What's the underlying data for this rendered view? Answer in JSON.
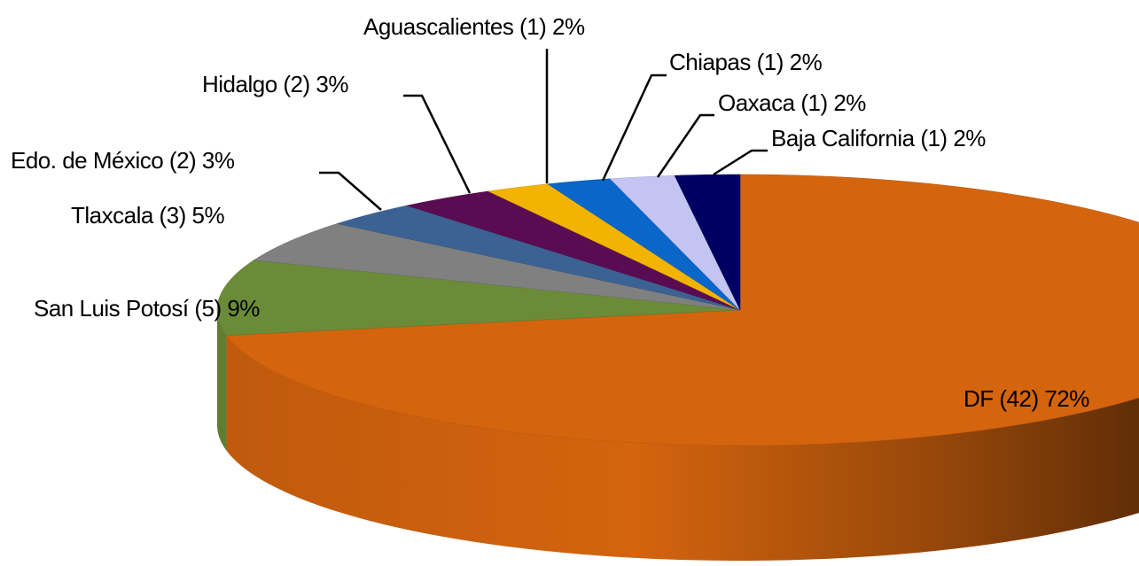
{
  "chart_data": {
    "type": "pie",
    "values": [
      72,
      9,
      5,
      3,
      3,
      2,
      2,
      2,
      2
    ],
    "value_labels": [
      "DF (42) 72%",
      "San Luis Potosí (5) 9%",
      "Tlaxcala (3) 5%",
      "Edo. de México (2) 3%",
      "Hidalgo (2) 3%",
      "Aguascalientes (1) 2%",
      "Chiapas (1) 2%",
      "Oaxaca (1)  2%",
      "Baja California (1) 2%"
    ],
    "colors": [
      "#d4640e",
      "#6b8b38",
      "#808080",
      "#3c6294",
      "#5a0c52",
      "#f2b400",
      "#0a66c8",
      "#c4c4f2",
      "#000062"
    ],
    "three_d": true
  }
}
